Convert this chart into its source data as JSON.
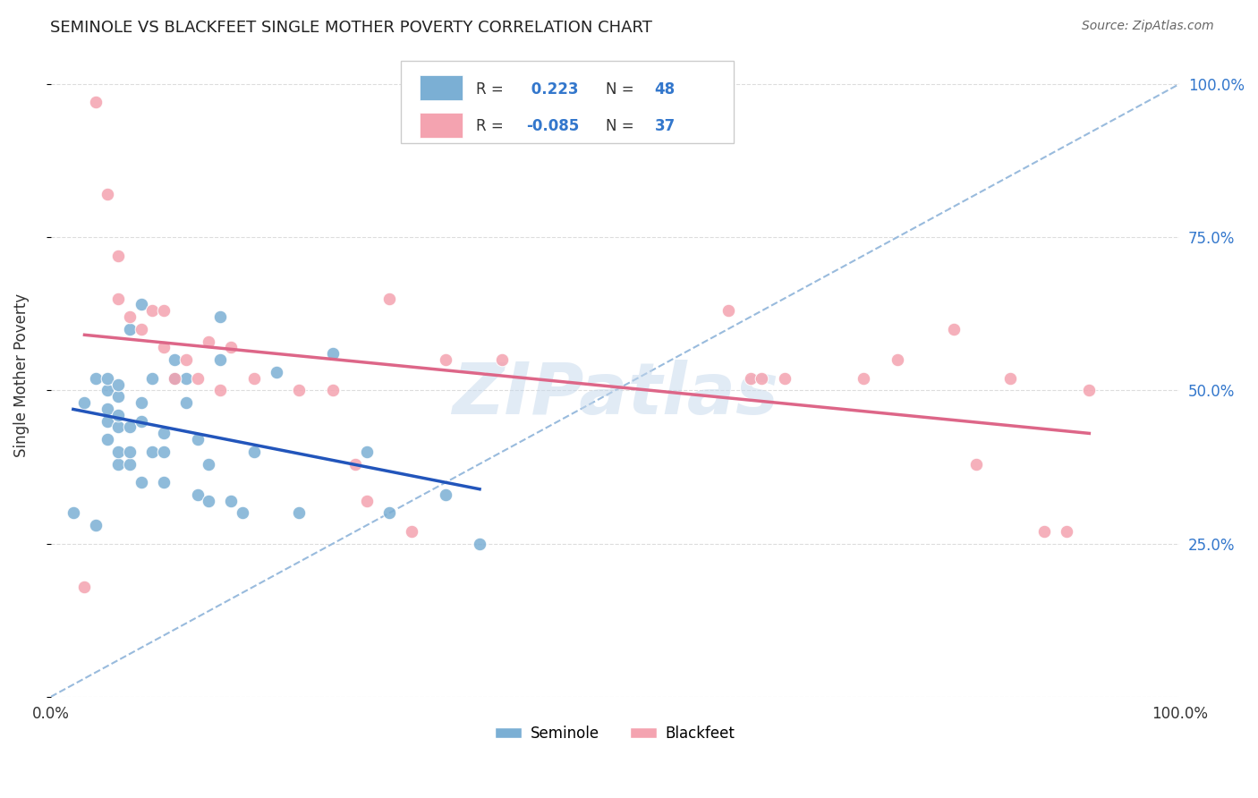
{
  "title": "SEMINOLE VS BLACKFEET SINGLE MOTHER POVERTY CORRELATION CHART",
  "source": "Source: ZipAtlas.com",
  "ylabel": "Single Mother Poverty",
  "watermark": "ZIPatlas",
  "seminole_R": 0.223,
  "seminole_N": 48,
  "blackfeet_R": -0.085,
  "blackfeet_N": 37,
  "seminole_color": "#7bafd4",
  "blackfeet_color": "#f4a3b0",
  "seminole_line_color": "#2255bb",
  "blackfeet_line_color": "#dd6688",
  "dashed_line_color": "#99bbdd",
  "right_axis_color": "#3377cc",
  "legend_text_color": "#3377cc",
  "grid_color": "#dddddd",
  "background_color": "#ffffff",
  "seminole_x": [
    0.02,
    0.03,
    0.04,
    0.04,
    0.05,
    0.05,
    0.05,
    0.05,
    0.05,
    0.06,
    0.06,
    0.06,
    0.06,
    0.06,
    0.06,
    0.07,
    0.07,
    0.07,
    0.07,
    0.08,
    0.08,
    0.08,
    0.08,
    0.09,
    0.09,
    0.1,
    0.1,
    0.1,
    0.11,
    0.11,
    0.12,
    0.12,
    0.13,
    0.13,
    0.14,
    0.14,
    0.15,
    0.15,
    0.16,
    0.17,
    0.18,
    0.2,
    0.22,
    0.25,
    0.28,
    0.3,
    0.35,
    0.38
  ],
  "seminole_y": [
    0.3,
    0.48,
    0.28,
    0.52,
    0.42,
    0.45,
    0.47,
    0.5,
    0.52,
    0.38,
    0.4,
    0.44,
    0.46,
    0.49,
    0.51,
    0.38,
    0.4,
    0.44,
    0.6,
    0.35,
    0.45,
    0.48,
    0.64,
    0.4,
    0.52,
    0.35,
    0.4,
    0.43,
    0.52,
    0.55,
    0.48,
    0.52,
    0.33,
    0.42,
    0.32,
    0.38,
    0.55,
    0.62,
    0.32,
    0.3,
    0.4,
    0.53,
    0.3,
    0.56,
    0.4,
    0.3,
    0.33,
    0.25
  ],
  "blackfeet_x": [
    0.03,
    0.04,
    0.05,
    0.06,
    0.06,
    0.07,
    0.08,
    0.09,
    0.1,
    0.1,
    0.11,
    0.12,
    0.13,
    0.14,
    0.15,
    0.16,
    0.18,
    0.22,
    0.25,
    0.27,
    0.28,
    0.3,
    0.32,
    0.35,
    0.4,
    0.6,
    0.62,
    0.63,
    0.65,
    0.72,
    0.75,
    0.8,
    0.82,
    0.85,
    0.88,
    0.9,
    0.92
  ],
  "blackfeet_y": [
    0.18,
    0.97,
    0.82,
    0.72,
    0.65,
    0.62,
    0.6,
    0.63,
    0.57,
    0.63,
    0.52,
    0.55,
    0.52,
    0.58,
    0.5,
    0.57,
    0.52,
    0.5,
    0.5,
    0.38,
    0.32,
    0.65,
    0.27,
    0.55,
    0.55,
    0.63,
    0.52,
    0.52,
    0.52,
    0.52,
    0.55,
    0.6,
    0.38,
    0.52,
    0.27,
    0.27,
    0.5
  ],
  "ytick_positions": [
    0.0,
    0.25,
    0.5,
    0.75,
    1.0
  ],
  "ytick_labels_right": [
    "",
    "25.0%",
    "50.0%",
    "75.0%",
    "100.0%"
  ],
  "xlim": [
    0.0,
    1.0
  ],
  "ylim": [
    0.0,
    1.05
  ]
}
